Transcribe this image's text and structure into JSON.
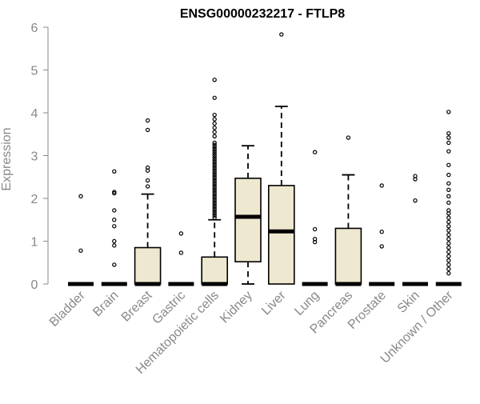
{
  "chart_data": {
    "type": "box",
    "title": "ENSG00000232217 - FTLP8",
    "xlabel": "",
    "ylabel": "Expression",
    "ylim": [
      0,
      6
    ],
    "yticks": [
      0,
      1,
      2,
      3,
      4,
      5,
      6
    ],
    "box_fill": "#EEE8D0",
    "axis_color": "#888888",
    "categories": [
      "Bladder",
      "Brain",
      "Breast",
      "Gastric",
      "Hematopoietic cells",
      "Kidney",
      "Liver",
      "Lung",
      "Pancreas",
      "Prostate",
      "Skin",
      "Unknown / Other"
    ],
    "boxes": [
      {
        "q1": 0,
        "median": 0,
        "q3": 0,
        "whisker_low": 0,
        "whisker_high": 0,
        "outliers": [
          0.78,
          2.05
        ]
      },
      {
        "q1": 0,
        "median": 0,
        "q3": 0,
        "whisker_low": 0,
        "whisker_high": 0,
        "outliers": [
          0.45,
          0.9,
          1.0,
          1.35,
          1.5,
          1.72,
          2.12,
          2.15,
          2.63
        ]
      },
      {
        "q1": 0,
        "median": 0,
        "q3": 0.85,
        "whisker_low": 0,
        "whisker_high": 2.1,
        "outliers": [
          2.28,
          2.42,
          2.65,
          2.72,
          3.6,
          3.82
        ]
      },
      {
        "q1": 0,
        "median": 0,
        "q3": 0,
        "whisker_low": 0,
        "whisker_high": 0,
        "outliers": [
          0.73,
          1.18
        ]
      },
      {
        "q1": 0,
        "median": 0,
        "q3": 0.63,
        "whisker_low": 0,
        "whisker_high": 1.5,
        "outliers": [
          1.55,
          1.6,
          1.65,
          1.7,
          1.75,
          1.8,
          1.85,
          1.9,
          1.95,
          2.0,
          2.05,
          2.1,
          2.15,
          2.2,
          2.25,
          2.3,
          2.35,
          2.4,
          2.45,
          2.5,
          2.55,
          2.6,
          2.65,
          2.7,
          2.75,
          2.8,
          2.85,
          2.9,
          2.95,
          3.0,
          3.05,
          3.1,
          3.15,
          3.2,
          3.25,
          3.3,
          3.45,
          3.55,
          3.65,
          3.75,
          3.85,
          3.95,
          4.35,
          4.77
        ]
      },
      {
        "q1": 0.52,
        "median": 1.57,
        "q3": 2.47,
        "whisker_low": 0,
        "whisker_high": 3.23,
        "outliers": []
      },
      {
        "q1": 0,
        "median": 1.23,
        "q3": 2.3,
        "whisker_low": 0,
        "whisker_high": 4.15,
        "outliers": [
          5.83
        ]
      },
      {
        "q1": 0,
        "median": 0,
        "q3": 0,
        "whisker_low": 0,
        "whisker_high": 0,
        "outliers": [
          0.98,
          1.05,
          1.28,
          3.08
        ]
      },
      {
        "q1": 0,
        "median": 0,
        "q3": 1.3,
        "whisker_low": 0,
        "whisker_high": 2.55,
        "outliers": [
          3.42
        ]
      },
      {
        "q1": 0,
        "median": 0,
        "q3": 0,
        "whisker_low": 0,
        "whisker_high": 0,
        "outliers": [
          0.88,
          1.22,
          2.3
        ]
      },
      {
        "q1": 0,
        "median": 0,
        "q3": 0,
        "whisker_low": 0,
        "whisker_high": 0,
        "outliers": [
          1.95,
          2.45,
          2.52
        ]
      },
      {
        "q1": 0,
        "median": 0,
        "q3": 0,
        "whisker_low": 0,
        "whisker_high": 0,
        "outliers": [
          0.25,
          0.35,
          0.45,
          0.55,
          0.65,
          0.75,
          0.85,
          0.95,
          1.05,
          1.15,
          1.25,
          1.35,
          1.45,
          1.55,
          1.65,
          1.72,
          1.9,
          2.05,
          2.2,
          2.35,
          2.55,
          2.78,
          3.1,
          3.3,
          3.42,
          3.52,
          4.02
        ]
      }
    ]
  }
}
